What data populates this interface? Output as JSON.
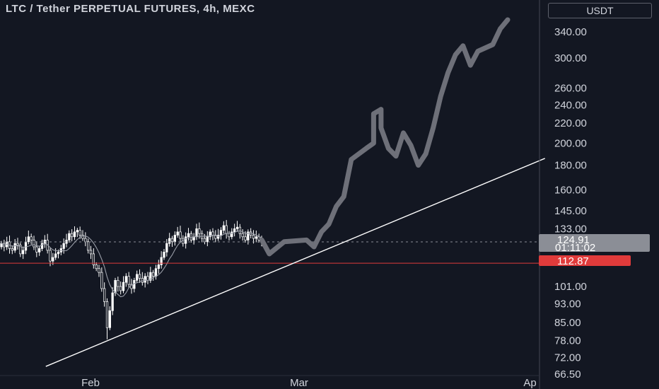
{
  "header": {
    "title": "LTC / Tether PERPETUAL FUTURES, 4h, MEXC",
    "currency": "USDT"
  },
  "price_tags": {
    "last_price": "124.91",
    "countdown": "01:11:02",
    "level_price": "112.87"
  },
  "colors": {
    "background": "#131722",
    "up": "#ffffff",
    "down": "#ffffff",
    "ma": "#9a9ea8",
    "projection": "#6e7079",
    "trendline": "#ffffff",
    "level": "#e03b3b",
    "last_price_tag": "#8b8e96"
  },
  "chart_data": {
    "type": "candlestick",
    "scale": "log",
    "title": "LTC / Tether PERPETUAL FUTURES, 4h, MEXC",
    "y_ticks": [
      "340.00",
      "300.00",
      "260.00",
      "240.00",
      "220.00",
      "200.00",
      "180.00",
      "160.00",
      "145.00",
      "133.00",
      "124.91",
      "112.87",
      "101.00",
      "93.00",
      "85.00",
      "78.00",
      "72.00",
      "66.50"
    ],
    "y_tick_values": [
      340,
      300,
      260,
      240,
      220,
      200,
      180,
      160,
      145,
      133,
      101,
      93,
      85,
      78,
      72,
      66.5
    ],
    "x_ticks": [
      "Feb",
      "Mar",
      "Ap"
    ],
    "x_tick_dates": [
      "2025-02-01",
      "2025-03-01",
      "2025-04-01"
    ],
    "candles_closes": [
      124,
      122,
      125,
      121,
      120,
      124,
      123,
      118,
      120,
      125,
      128,
      126,
      122,
      119,
      121,
      124,
      126,
      120,
      114,
      116,
      118,
      119,
      121,
      124,
      126,
      130,
      128,
      131,
      132,
      129,
      127,
      125,
      120,
      118,
      112,
      110,
      108,
      100,
      94,
      83,
      90,
      98,
      104,
      101,
      99,
      103,
      106,
      102,
      100,
      104,
      107,
      105,
      103,
      106,
      104,
      108,
      106,
      110,
      112,
      116,
      119,
      124,
      127,
      125,
      129,
      131,
      127,
      124,
      128,
      130,
      126,
      128,
      133,
      130,
      127,
      125,
      128,
      131,
      129,
      127,
      129,
      132,
      135,
      130,
      128,
      131,
      133,
      134,
      130,
      128,
      126,
      131,
      129,
      127,
      128,
      126,
      124.91
    ],
    "last_price": 124.91,
    "horizontal_level": 112.87,
    "trendline": {
      "start": {
        "date": "2025-01-26",
        "price": 69
      },
      "end": {
        "date": "2025-04-03",
        "price": 186
      }
    },
    "projection": [
      {
        "date": "2025-02-24",
        "price": 126
      },
      {
        "date": "2025-02-25",
        "price": 118
      },
      {
        "date": "2025-02-27",
        "price": 125
      },
      {
        "date": "2025-03-02",
        "price": 126
      },
      {
        "date": "2025-03-03",
        "price": 122
      },
      {
        "date": "2025-03-04",
        "price": 131
      },
      {
        "date": "2025-03-05",
        "price": 136
      },
      {
        "date": "2025-03-06",
        "price": 148
      },
      {
        "date": "2025-03-07",
        "price": 155
      },
      {
        "date": "2025-03-08",
        "price": 185
      },
      {
        "date": "2025-03-10",
        "price": 195
      },
      {
        "date": "2025-03-11",
        "price": 200
      },
      {
        "date": "2025-03-11",
        "price": 230
      },
      {
        "date": "2025-03-12",
        "price": 235
      },
      {
        "date": "2025-03-12",
        "price": 215
      },
      {
        "date": "2025-03-13",
        "price": 195
      },
      {
        "date": "2025-03-14",
        "price": 188
      },
      {
        "date": "2025-03-15",
        "price": 210
      },
      {
        "date": "2025-03-16",
        "price": 198
      },
      {
        "date": "2025-03-17",
        "price": 180
      },
      {
        "date": "2025-03-18",
        "price": 190
      },
      {
        "date": "2025-03-19",
        "price": 215
      },
      {
        "date": "2025-03-20",
        "price": 250
      },
      {
        "date": "2025-03-21",
        "price": 280
      },
      {
        "date": "2025-03-22",
        "price": 305
      },
      {
        "date": "2025-03-23",
        "price": 318
      },
      {
        "date": "2025-03-24",
        "price": 290
      },
      {
        "date": "2025-03-25",
        "price": 310
      },
      {
        "date": "2025-03-27",
        "price": 320
      },
      {
        "date": "2025-03-28",
        "price": 345
      },
      {
        "date": "2025-03-29",
        "price": 360
      }
    ]
  }
}
